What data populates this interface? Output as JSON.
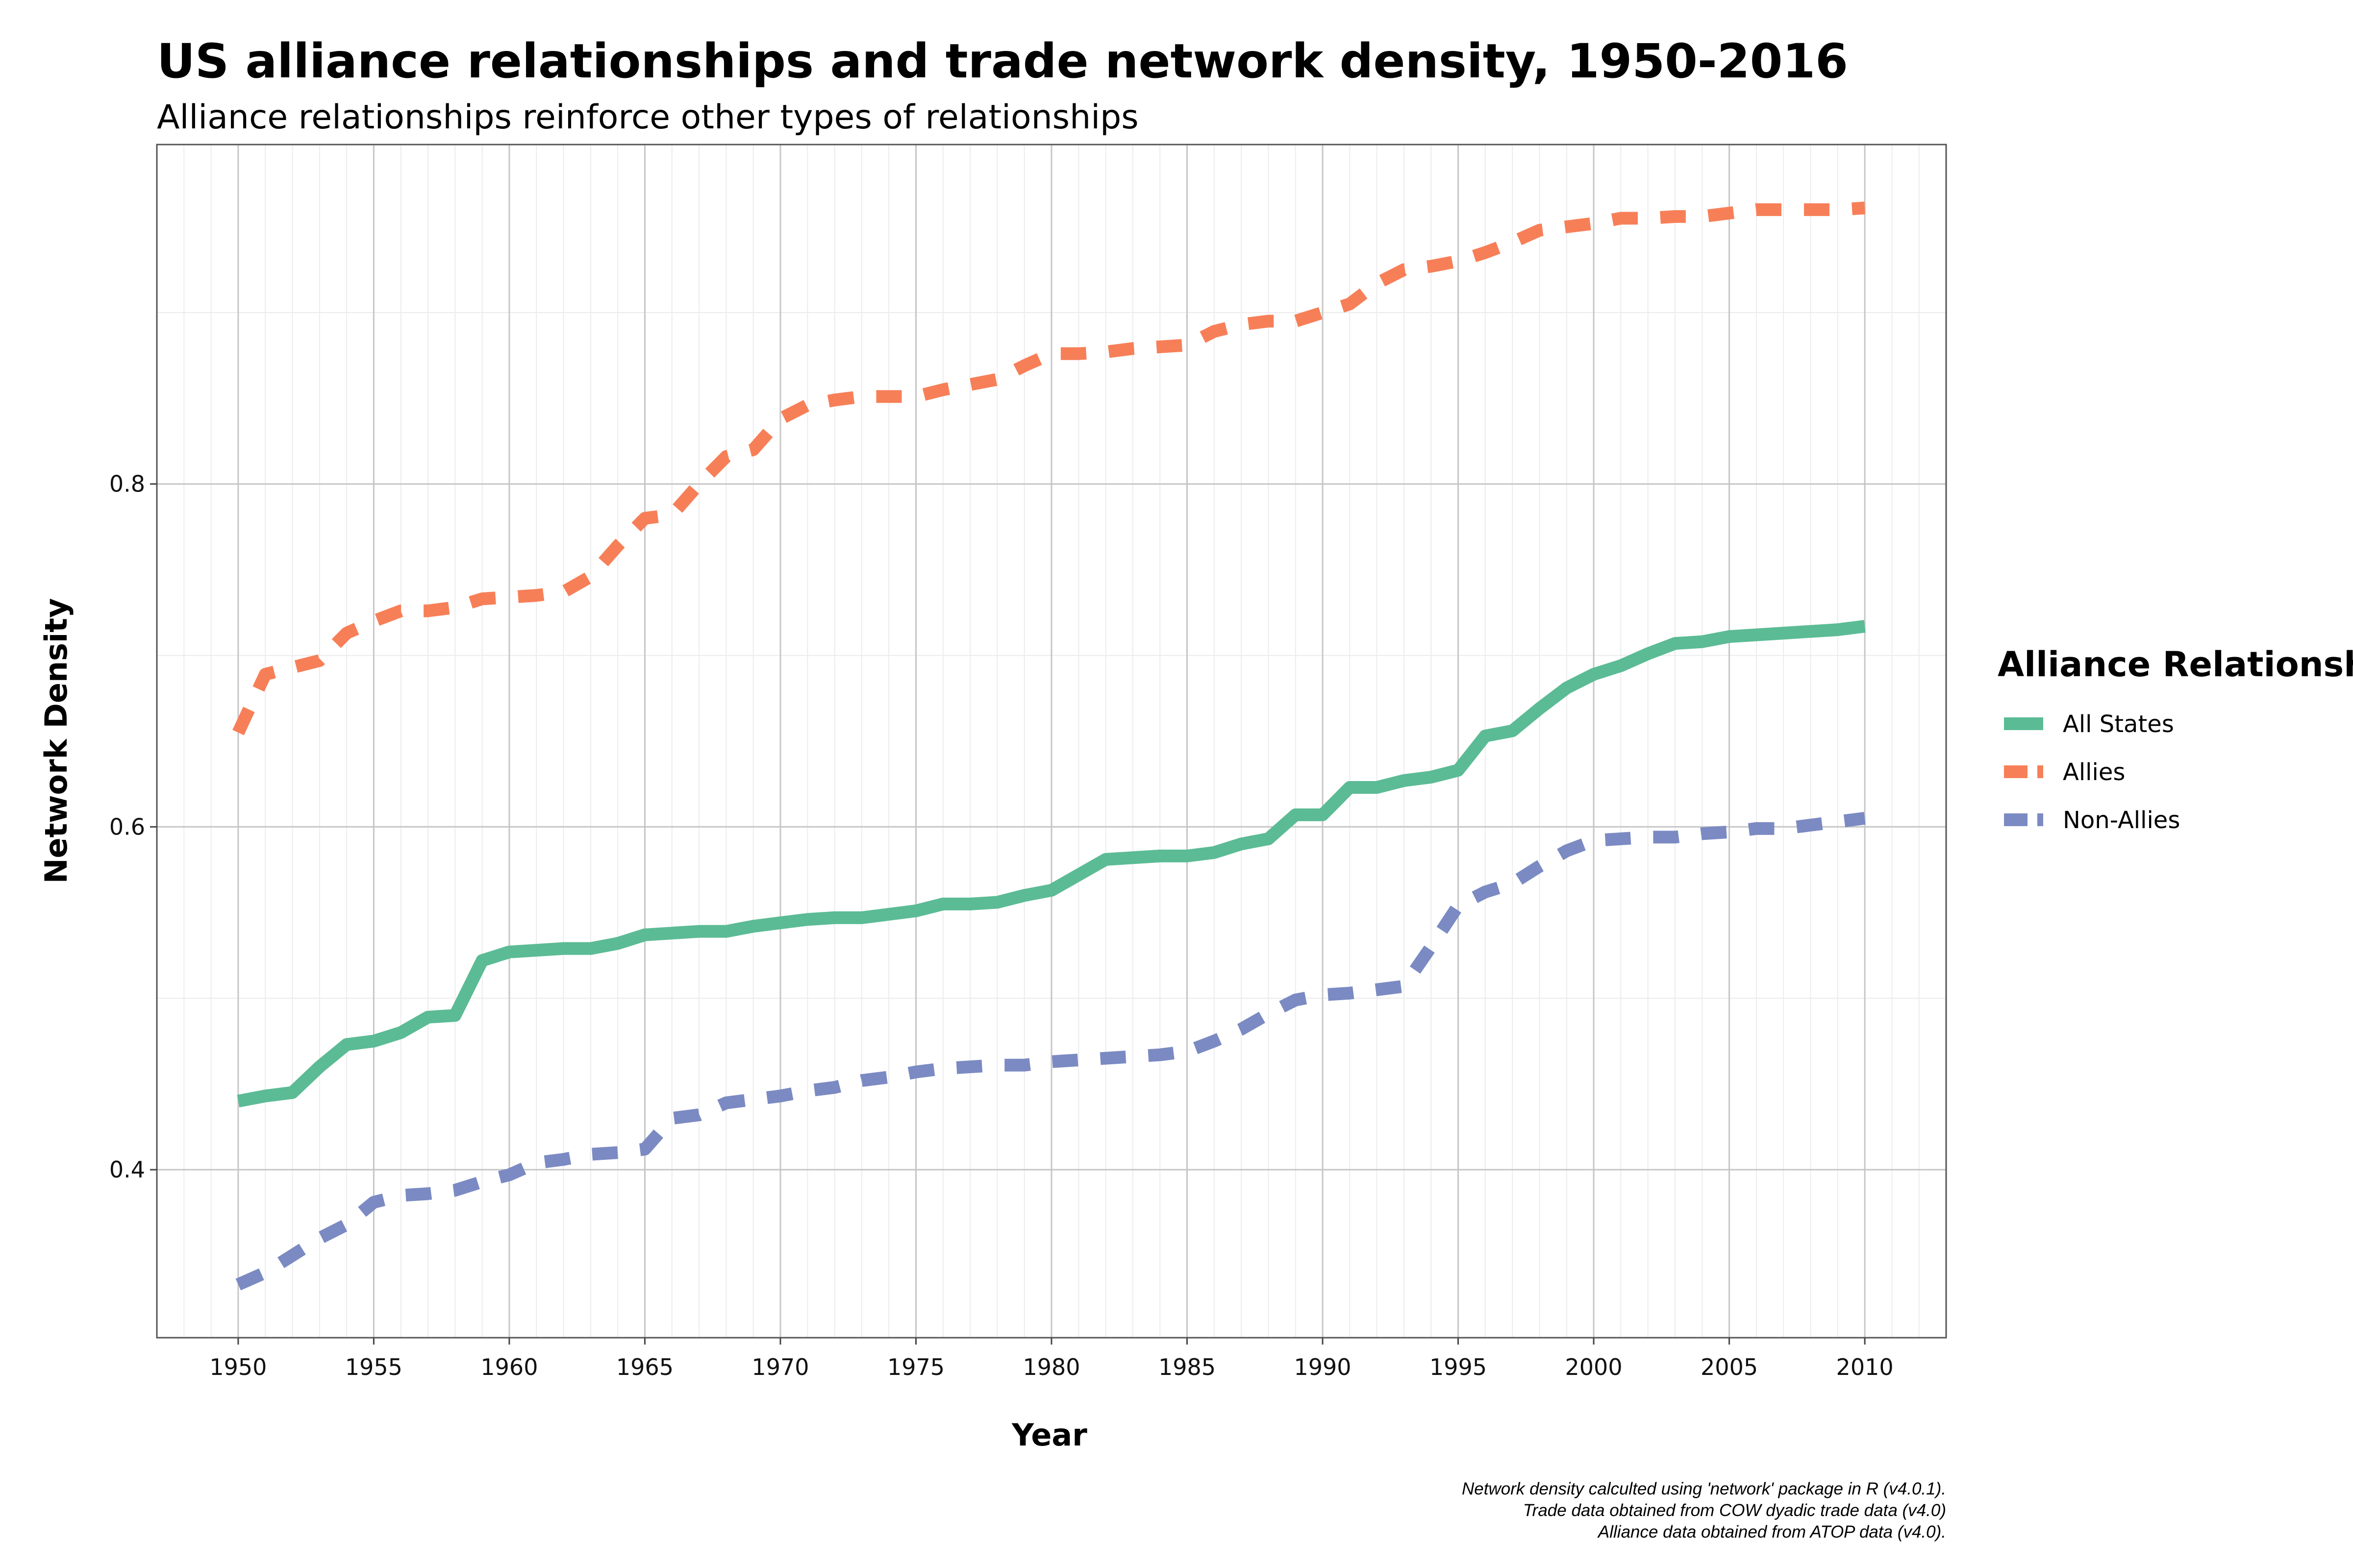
{
  "chart_data": {
    "type": "line",
    "title": "US alliance relationships and trade network density, 1950-2016",
    "subtitle": "Alliance relationships reinforce other types of relationships",
    "xlabel": "Year",
    "ylabel": "Network Density",
    "xlim": [
      1947,
      2013
    ],
    "ylim": [
      0.302,
      0.998
    ],
    "x_ticks": [
      "1950",
      "1955",
      "1960",
      "1965",
      "1970",
      "1975",
      "1980",
      "1985",
      "1990",
      "1995",
      "2000",
      "2005",
      "2010"
    ],
    "y_ticks": [
      "0.4",
      "0.6",
      "0.8"
    ],
    "grid": true,
    "legend": {
      "title": "Alliance Relationship",
      "placement": "right"
    },
    "caption": [
      "Network density calculted using 'network' package in R (v4.0.1).",
      "Trade data obtained from COW dyadic trade data (v4.0)",
      "Alliance data obtained from ATOP data (v4.0)."
    ],
    "x": [
      1950,
      1951,
      1952,
      1953,
      1954,
      1955,
      1956,
      1957,
      1958,
      1959,
      1960,
      1961,
      1962,
      1963,
      1964,
      1965,
      1966,
      1967,
      1968,
      1969,
      1970,
      1971,
      1972,
      1973,
      1974,
      1975,
      1976,
      1977,
      1978,
      1979,
      1980,
      1981,
      1982,
      1983,
      1984,
      1985,
      1986,
      1987,
      1988,
      1989,
      1990,
      1991,
      1992,
      1993,
      1994,
      1995,
      1996,
      1997,
      1998,
      1999,
      2000,
      2001,
      2002,
      2003,
      2004,
      2005,
      2006,
      2007,
      2008,
      2009,
      2010
    ],
    "series": [
      {
        "name": "All States",
        "color": "#5bbb95",
        "dash": "solid",
        "values": [
          0.44,
          0.443,
          0.445,
          0.46,
          0.473,
          0.475,
          0.48,
          0.489,
          0.49,
          0.522,
          0.527,
          0.528,
          0.529,
          0.529,
          0.532,
          0.537,
          0.538,
          0.539,
          0.539,
          0.542,
          0.544,
          0.546,
          0.547,
          0.547,
          0.549,
          0.551,
          0.555,
          0.555,
          0.556,
          0.56,
          0.563,
          0.572,
          0.581,
          0.582,
          0.583,
          0.583,
          0.585,
          0.59,
          0.593,
          0.607,
          0.607,
          0.623,
          0.623,
          0.627,
          0.629,
          0.633,
          0.653,
          0.656,
          0.669,
          0.681,
          0.689,
          0.694,
          0.701,
          0.707,
          0.708,
          0.711,
          0.712,
          0.713,
          0.714,
          0.715,
          0.717
        ]
      },
      {
        "name": "Allies",
        "color": "#f77f58",
        "dash": "dashed",
        "values": [
          0.655,
          0.689,
          0.693,
          0.697,
          0.713,
          0.72,
          0.726,
          0.726,
          0.728,
          0.733,
          0.734,
          0.735,
          0.737,
          0.746,
          0.764,
          0.78,
          0.782,
          0.8,
          0.816,
          0.82,
          0.838,
          0.846,
          0.849,
          0.851,
          0.851,
          0.851,
          0.855,
          0.858,
          0.861,
          0.869,
          0.876,
          0.876,
          0.877,
          0.879,
          0.88,
          0.881,
          0.889,
          0.893,
          0.895,
          0.895,
          0.9,
          0.905,
          0.917,
          0.925,
          0.927,
          0.93,
          0.935,
          0.941,
          0.948,
          0.95,
          0.952,
          0.955,
          0.955,
          0.956,
          0.956,
          0.958,
          0.96,
          0.96,
          0.96,
          0.96,
          0.961
        ]
      },
      {
        "name": "Non-Allies",
        "color": "#7b8ac2",
        "dash": "dashed",
        "values": [
          0.333,
          0.34,
          0.35,
          0.36,
          0.368,
          0.381,
          0.385,
          0.386,
          0.388,
          0.393,
          0.397,
          0.404,
          0.406,
          0.409,
          0.41,
          0.412,
          0.43,
          0.432,
          0.439,
          0.441,
          0.443,
          0.446,
          0.448,
          0.452,
          0.454,
          0.457,
          0.459,
          0.46,
          0.461,
          0.461,
          0.463,
          0.464,
          0.465,
          0.466,
          0.467,
          0.469,
          0.475,
          0.482,
          0.491,
          0.499,
          0.502,
          0.503,
          0.505,
          0.507,
          0.53,
          0.554,
          0.562,
          0.567,
          0.577,
          0.586,
          0.592,
          0.593,
          0.594,
          0.594,
          0.596,
          0.597,
          0.599,
          0.599,
          0.601,
          0.603,
          0.605
        ]
      }
    ]
  }
}
